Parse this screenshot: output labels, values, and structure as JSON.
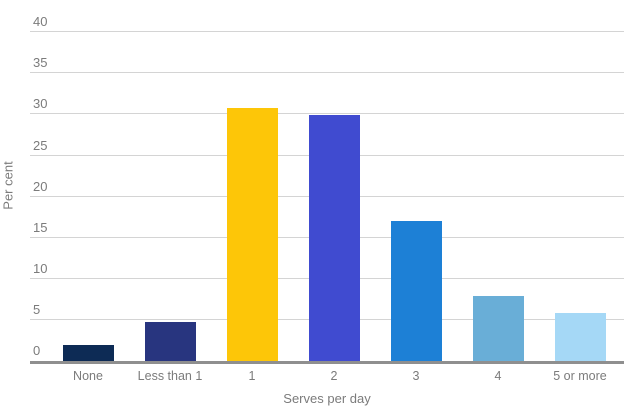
{
  "chart_data": {
    "type": "bar",
    "title": "",
    "categories": [
      "None",
      "Less than 1",
      "1",
      "2",
      "3",
      "4",
      "5 or more"
    ],
    "values": [
      1.9,
      4.7,
      30.8,
      29.9,
      17.0,
      7.9,
      5.8
    ],
    "bar_colors": [
      "#0d2b55",
      "#28357f",
      "#fdc608",
      "#404bd0",
      "#1d80d6",
      "#69aed7",
      "#a5d8f6"
    ],
    "xlabel": "Serves per day",
    "ylabel": "Per cent",
    "yticks": [
      0,
      5,
      10,
      15,
      20,
      25,
      30,
      35,
      40
    ],
    "ylim": [
      0,
      40
    ],
    "grid": "horizontal",
    "legend": "none"
  },
  "colors": {
    "background": "#ffffff",
    "gridline": "#d4d4d4",
    "axis_line": "#8f8f8f",
    "tick_label": "#7b7b7b",
    "axis_title": "#7b7b7b"
  }
}
